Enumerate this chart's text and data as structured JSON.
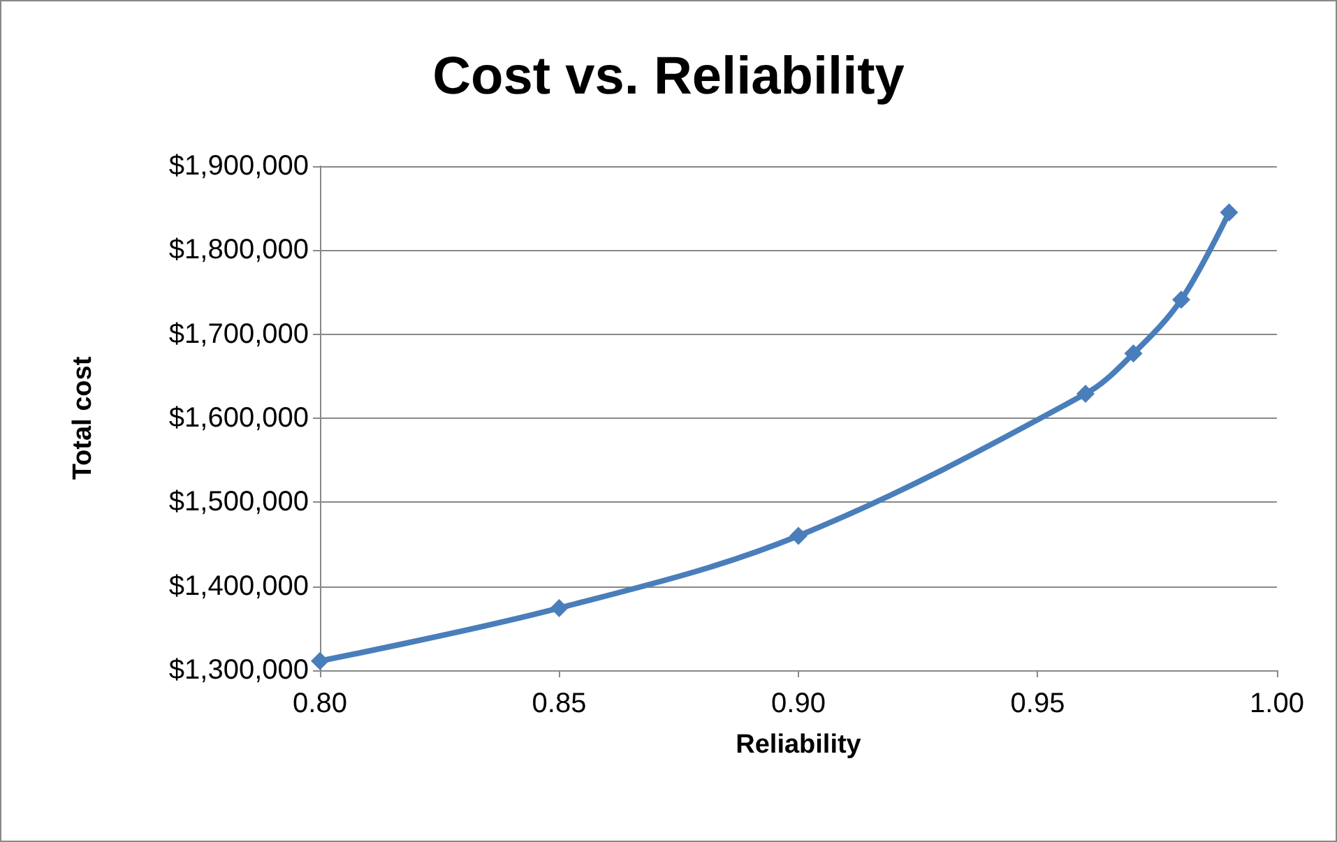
{
  "chart_data": {
    "type": "line",
    "title": "Cost vs. Reliability",
    "xlabel": "Reliability",
    "ylabel": "Total cost",
    "x": [
      0.8,
      0.85,
      0.9,
      0.96,
      0.97,
      0.98,
      0.99
    ],
    "series": [
      {
        "color": "#4a7ebb",
        "values": [
          1311000,
          1374000,
          1460000,
          1629000,
          1677000,
          1741000,
          1845000
        ]
      }
    ],
    "xlim": [
      0.8,
      1.0
    ],
    "xticks": [
      {
        "value": 0.8,
        "label": "0.80"
      },
      {
        "value": 0.85,
        "label": "0.85"
      },
      {
        "value": 0.9,
        "label": "0.90"
      },
      {
        "value": 0.95,
        "label": "0.95"
      },
      {
        "value": 1.0,
        "label": "1.00"
      }
    ],
    "ylim": [
      1300000,
      1900000
    ],
    "yticks": [
      {
        "value": 1300000,
        "label": "$1,300,000"
      },
      {
        "value": 1400000,
        "label": "$1,400,000"
      },
      {
        "value": 1500000,
        "label": "$1,500,000"
      },
      {
        "value": 1600000,
        "label": "$1,600,000"
      },
      {
        "value": 1700000,
        "label": "$1,700,000"
      },
      {
        "value": 1800000,
        "label": "$1,800,000"
      },
      {
        "value": 1900000,
        "label": "$1,900,000"
      }
    ],
    "grid": "y",
    "marker": "diamond",
    "line_style": "solid"
  }
}
